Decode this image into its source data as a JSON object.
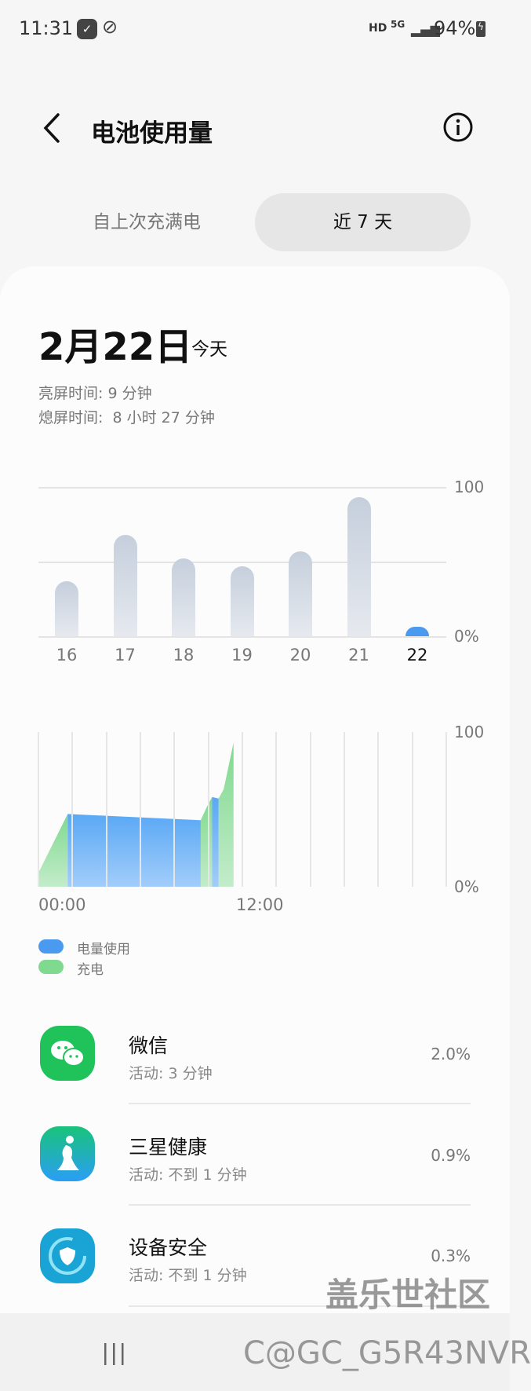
{
  "status_bar": {
    "time": "11:31",
    "network": "HD",
    "network_type": "5G",
    "battery": "94%"
  },
  "header": {
    "title": "电池使用量",
    "back_icon": "chevron-left-icon",
    "info_icon": "info-icon"
  },
  "tabs": [
    {
      "label": "自上次充满电",
      "selected": false
    },
    {
      "label": "近 7 天",
      "selected": true
    }
  ],
  "summary": {
    "date": "2月22日",
    "date_suffix": "今天",
    "screen_on_label": "亮屏时间:",
    "screen_on_value": "9 分钟",
    "screen_off_label": "熄屏时间:",
    "screen_off_value": "8 小时 27 分钟"
  },
  "chart_data": [
    {
      "type": "bar",
      "categories": [
        "16",
        "17",
        "18",
        "19",
        "20",
        "21",
        "22"
      ],
      "values": [
        37,
        68,
        52,
        47,
        57,
        93,
        6
      ],
      "ylim": [
        0,
        100
      ],
      "y_tick_labels": [
        "100",
        "0%"
      ],
      "highlight_category": "22",
      "colors": {
        "default": "#c9d2de",
        "highlight": "#4a9af0"
      },
      "grid": true
    },
    {
      "type": "area",
      "x_unit": "hour",
      "xlim": [
        0,
        24
      ],
      "ylim": [
        0,
        100
      ],
      "x_tick_labels": [
        "00:00",
        "12:00"
      ],
      "y_tick_labels": [
        "100",
        "0%"
      ],
      "series": [
        {
          "name": "充电",
          "color": "#7fd98f",
          "segments": [
            [
              [
                0,
                9
              ],
              [
                1.72,
                47
              ]
            ],
            [
              [
                9.55,
                43
              ],
              [
                9.93,
                52
              ],
              [
                10.22,
                58
              ]
            ],
            [
              [
                10.6,
                57
              ],
              [
                10.9,
                63
              ],
              [
                11.48,
                93
              ]
            ]
          ]
        },
        {
          "name": "电量使用",
          "color": "#5aa8f5",
          "segments": [
            [
              [
                1.72,
                47
              ],
              [
                9.55,
                43
              ]
            ],
            [
              [
                10.22,
                58
              ],
              [
                10.6,
                57
              ]
            ]
          ]
        }
      ]
    }
  ],
  "legend": [
    {
      "label": "电量使用",
      "color": "#4a9af0"
    },
    {
      "label": "充电",
      "color": "#7fd98f"
    }
  ],
  "apps": [
    {
      "name": "微信",
      "activity": "活动: 3 分钟",
      "percent": "2.0%",
      "icon": "wechat-icon"
    },
    {
      "name": "三星健康",
      "activity": "活动: 不到 1 分钟",
      "percent": "0.9%",
      "icon": "samsung-health-icon"
    },
    {
      "name": "设备安全",
      "activity": "活动: 不到 1 分钟",
      "percent": "0.3%",
      "icon": "device-security-icon"
    }
  ],
  "watermark": {
    "line1": "盖乐世社区",
    "line2": "C@GC_G5R43NVR"
  }
}
